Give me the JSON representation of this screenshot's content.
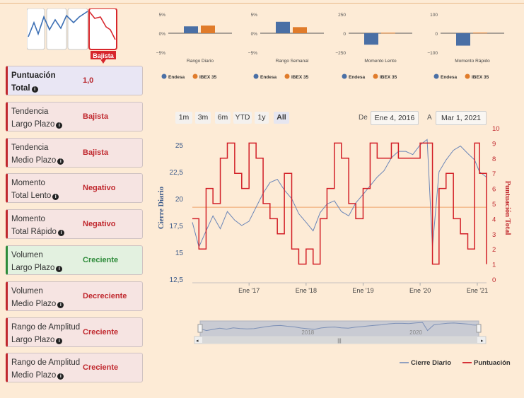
{
  "logo": {
    "label": "Bajista",
    "label_color": "#d7262c"
  },
  "indicators": [
    {
      "line1": "Puntuación",
      "line2": "Total",
      "value": "1,0",
      "value_color": "#b8272d",
      "style": "neutral",
      "bold": true
    },
    {
      "line1": "Tendencia",
      "line2": "Largo Plazo",
      "value": "Bajista",
      "value_color": "#c0282e",
      "style": "red"
    },
    {
      "line1": "Tendencia",
      "line2": "Medio Plazo",
      "value": "Bajista",
      "value_color": "#c0282e",
      "style": "red"
    },
    {
      "line1": "Momento",
      "line2": "Total Lento",
      "value": "Negativo",
      "value_color": "#c0282e",
      "style": "red"
    },
    {
      "line1": "Momento",
      "line2": "Total Rápido",
      "value": "Negativo",
      "value_color": "#c0282e",
      "style": "red"
    },
    {
      "line1": "Volumen",
      "line2": "Largo Plazo",
      "value": "Creciente",
      "value_color": "#2e8b3a",
      "style": "green"
    },
    {
      "line1": "Volumen",
      "line2": "Medio Plazo",
      "value": "Decreciente",
      "value_color": "#c0282e",
      "style": "red"
    },
    {
      "line1": "Rango de Amplitud",
      "line2": "Largo Plazo",
      "value": "Creciente",
      "value_color": "#c0282e",
      "style": "red"
    },
    {
      "line1": "Rango de Amplitud",
      "line2": "Medio Plazo",
      "value": "Creciente",
      "value_color": "#c0282e",
      "style": "red"
    }
  ],
  "range_buttons": [
    "1m",
    "3m",
    "6m",
    "YTD",
    "1y",
    "All"
  ],
  "active_range": "All",
  "range_from_label": "De",
  "range_from": "Ene 4, 2016",
  "range_to_label": "A",
  "range_to": "Mar 1, 2021",
  "colors": {
    "endesa": "#4a6fa5",
    "ibex": "#e07b2a",
    "price_line": "#6b86b8",
    "score_line": "#d21e26",
    "ref_line": "#f0a46a"
  },
  "chart_data": [
    {
      "type": "bar",
      "title": "",
      "xlabel": "Rango Diario",
      "yticks": [
        "5%",
        "0%",
        "−5%"
      ],
      "ylim": [
        -5,
        5
      ],
      "series": [
        {
          "name": "Endesa",
          "values": [
            1.8
          ]
        },
        {
          "name": "IBEX 35",
          "values": [
            2.0
          ]
        }
      ]
    },
    {
      "type": "bar",
      "title": "",
      "xlabel": "Rango Semanal",
      "yticks": [
        "5%",
        "0%",
        "−5%"
      ],
      "ylim": [
        -5,
        5
      ],
      "series": [
        {
          "name": "Endesa",
          "values": [
            3.0
          ]
        },
        {
          "name": "IBEX 35",
          "values": [
            1.6
          ]
        }
      ]
    },
    {
      "type": "bar",
      "title": "",
      "xlabel": "Momento Lento",
      "yticks": [
        "250",
        "0",
        "−250"
      ],
      "ylim": [
        -250,
        250
      ],
      "series": [
        {
          "name": "Endesa",
          "values": [
            -150
          ]
        },
        {
          "name": "IBEX 35",
          "values": [
            6
          ]
        }
      ]
    },
    {
      "type": "bar",
      "title": "",
      "xlabel": "Momento Rápido",
      "yticks": [
        "100",
        "0",
        "−100"
      ],
      "ylim": [
        -100,
        100
      ],
      "series": [
        {
          "name": "Endesa",
          "values": [
            -65
          ]
        },
        {
          "name": "IBEX 35",
          "values": [
            3
          ]
        }
      ]
    },
    {
      "type": "line",
      "title": "",
      "ylabel": "Cierre Diario",
      "y2label": "Puntuación Total",
      "ylim": [
        12.5,
        26.2
      ],
      "y2lim": [
        0,
        10
      ],
      "yticks": [
        "25",
        "22,5",
        "20",
        "17,5",
        "15",
        "12,5"
      ],
      "y2ticks": [
        "10",
        "9",
        "8",
        "7",
        "6",
        "5",
        "4",
        "3",
        "2",
        "1",
        "0"
      ],
      "xticks": [
        "Ene '17",
        "Ene '18",
        "Ene '19",
        "Ene '20",
        "Ene '21"
      ],
      "xlim": [
        "2016-01-04",
        "2021-03-01"
      ],
      "reference_line": 19.2,
      "navigator_labels": [
        "2018",
        "2020"
      ],
      "series": [
        {
          "name": "Cierre Diario",
          "x": [
            "2016-01-04",
            "2016-02-15",
            "2016-04-01",
            "2016-05-15",
            "2016-07-01",
            "2016-08-15",
            "2016-10-01",
            "2016-11-15",
            "2017-01-01",
            "2017-02-15",
            "2017-04-01",
            "2017-05-15",
            "2017-07-01",
            "2017-08-15",
            "2017-10-01",
            "2017-11-15",
            "2018-01-01",
            "2018-02-15",
            "2018-04-01",
            "2018-05-15",
            "2018-07-01",
            "2018-08-15",
            "2018-10-01",
            "2018-11-15",
            "2019-01-01",
            "2019-02-15",
            "2019-04-01",
            "2019-05-15",
            "2019-07-01",
            "2019-08-15",
            "2019-10-01",
            "2019-11-15",
            "2020-01-01",
            "2020-02-15",
            "2020-03-20",
            "2020-05-01",
            "2020-06-15",
            "2020-08-01",
            "2020-09-15",
            "2020-11-01",
            "2020-12-15",
            "2021-01-15",
            "2021-03-01"
          ],
          "y": [
            17.8,
            15.5,
            17.0,
            18.4,
            17.2,
            18.8,
            18.0,
            17.5,
            17.9,
            19.2,
            20.5,
            21.5,
            21.8,
            20.8,
            20.0,
            18.6,
            17.8,
            17.0,
            18.7,
            19.5,
            19.8,
            18.8,
            18.4,
            19.6,
            20.4,
            21.2,
            22.0,
            22.6,
            23.8,
            24.4,
            24.4,
            24.1,
            25.0,
            25.5,
            15.5,
            22.5,
            23.6,
            24.5,
            24.9,
            24.2,
            23.6,
            22.5,
            22.0
          ]
        },
        {
          "name": "Puntuación",
          "x": [
            "2016-01-04",
            "2016-02-15",
            "2016-04-01",
            "2016-05-15",
            "2016-07-01",
            "2016-08-15",
            "2016-10-01",
            "2016-11-15",
            "2017-01-01",
            "2017-02-15",
            "2017-04-01",
            "2017-05-15",
            "2017-07-01",
            "2017-08-15",
            "2017-10-01",
            "2017-11-15",
            "2018-01-01",
            "2018-02-15",
            "2018-04-01",
            "2018-05-15",
            "2018-07-01",
            "2018-08-15",
            "2018-10-01",
            "2018-11-15",
            "2019-01-01",
            "2019-02-15",
            "2019-04-01",
            "2019-05-15",
            "2019-07-01",
            "2019-08-15",
            "2019-10-01",
            "2019-11-15",
            "2020-01-01",
            "2020-02-15",
            "2020-03-20",
            "2020-05-01",
            "2020-06-15",
            "2020-08-01",
            "2020-09-15",
            "2020-11-01",
            "2020-12-15",
            "2021-01-15",
            "2021-03-01"
          ],
          "y": [
            4,
            2,
            6,
            5,
            8,
            9,
            7,
            6,
            9,
            8,
            5,
            4,
            3,
            7,
            2,
            1,
            2,
            1,
            4,
            6,
            9,
            8,
            5,
            4,
            6,
            9,
            8,
            8,
            9,
            8,
            8,
            8,
            9,
            9,
            1,
            6,
            7,
            4,
            3,
            2,
            9,
            7,
            1
          ]
        }
      ]
    }
  ]
}
